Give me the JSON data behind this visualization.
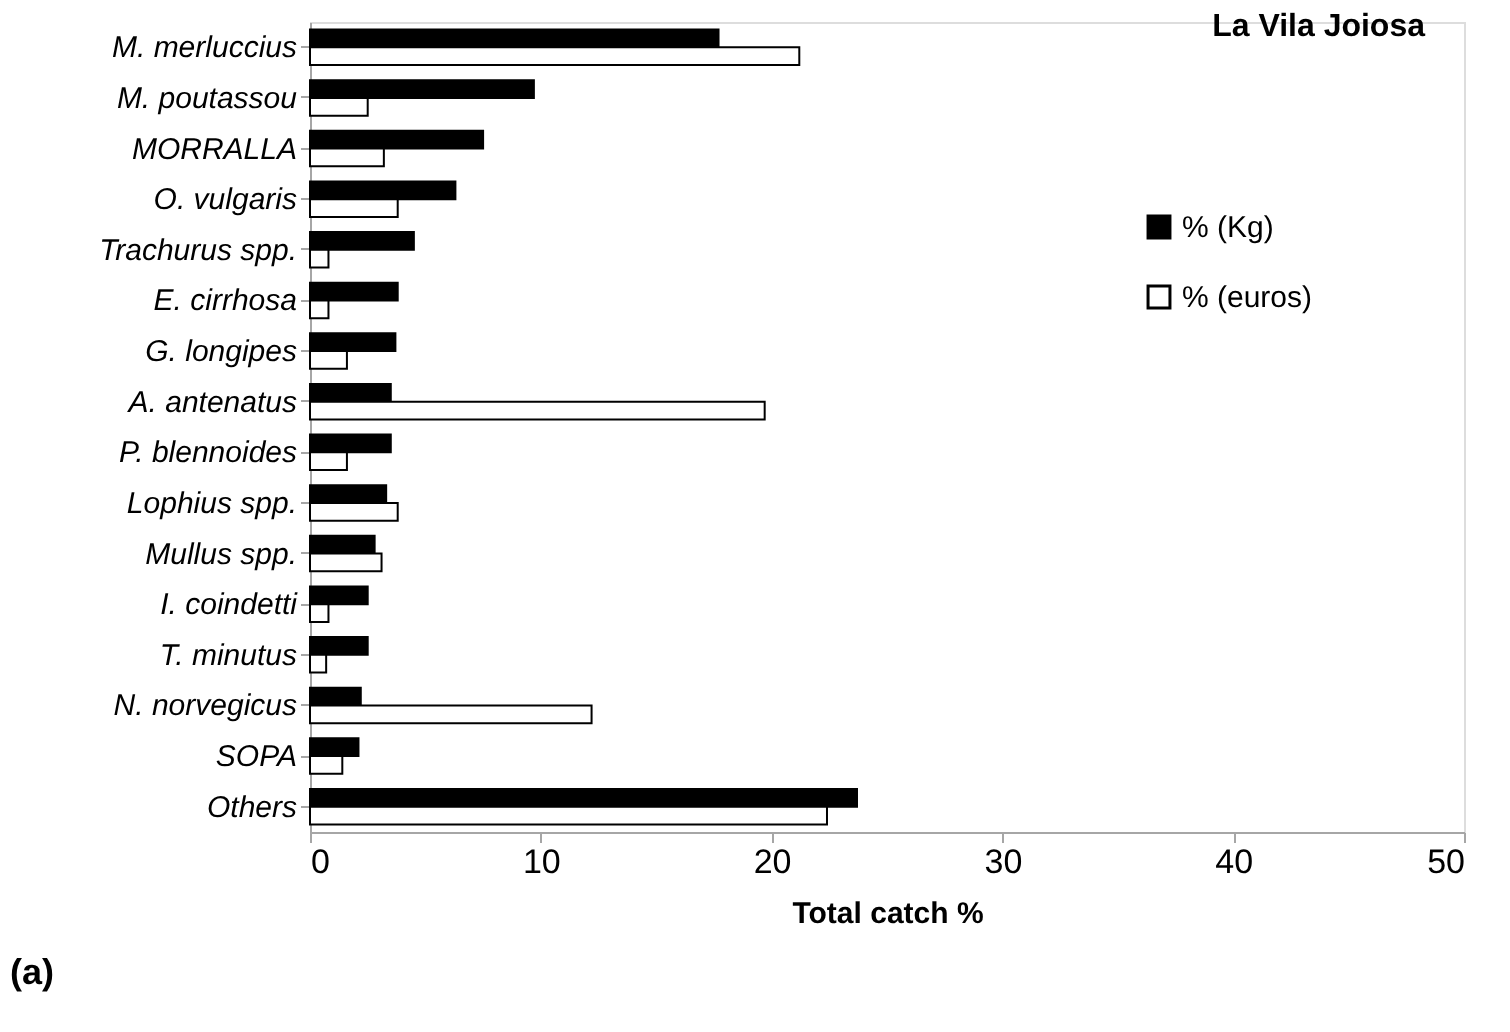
{
  "chart_data": {
    "type": "bar",
    "orientation": "horizontal",
    "title": "La Vila Joiosa",
    "xlabel": "Total catch %",
    "categories": [
      "M. merluccius",
      "M. poutassou",
      "MORRALLA",
      "O. vulgaris",
      "Trachurus spp.",
      "E. cirrhosa",
      "G. longipes",
      "A. antenatus",
      "P. blennoides",
      "Lophius spp.",
      "Mullus spp.",
      "I. coindetti",
      "T. minutus",
      "N. norvegicus",
      "SOPA",
      "Others"
    ],
    "series": [
      {
        "name": "% (Kg)",
        "color": "#000000",
        "values": [
          17.7,
          9.7,
          7.5,
          6.3,
          4.5,
          3.8,
          3.7,
          3.5,
          3.5,
          3.3,
          2.8,
          2.5,
          2.5,
          2.2,
          2.1,
          23.7
        ]
      },
      {
        "name": "% (euros)",
        "color": "#ffffff",
        "values": [
          21.2,
          2.5,
          3.2,
          3.8,
          0.8,
          0.8,
          1.6,
          19.7,
          1.6,
          3.8,
          3.1,
          0.8,
          0.7,
          12.2,
          1.4,
          22.4
        ]
      }
    ],
    "xlim": [
      0,
      50
    ],
    "xticks": [
      0,
      10,
      20,
      30,
      40,
      50
    ],
    "grid": false,
    "legend": "right",
    "annotations": [
      "(a)"
    ]
  }
}
